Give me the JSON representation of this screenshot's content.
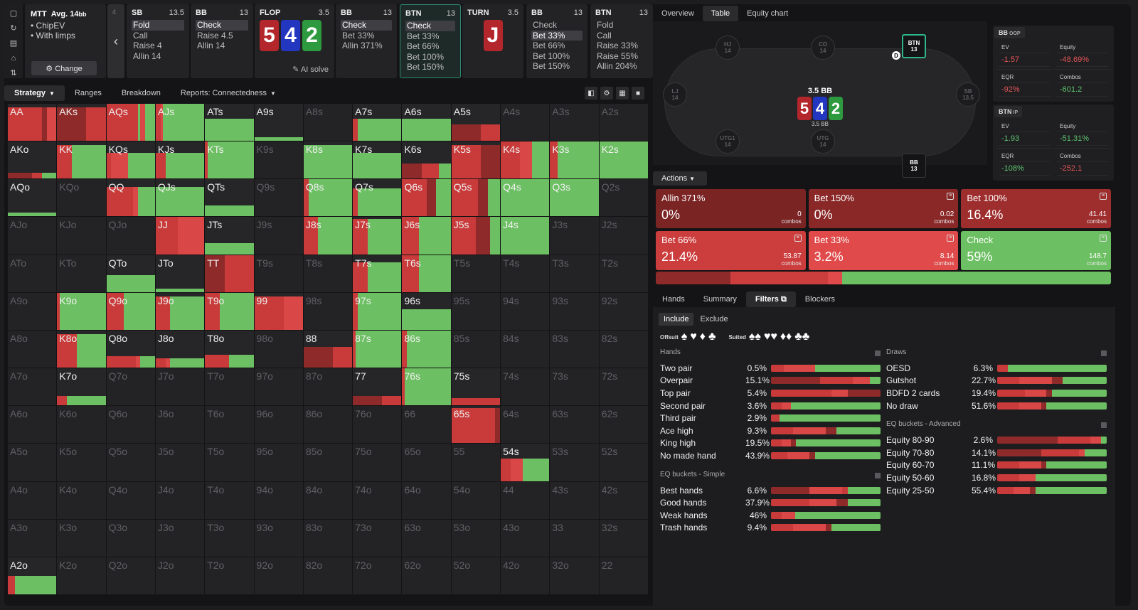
{
  "colors": {
    "green": "#6cbf62",
    "red": "#c93a3a",
    "dred": "#8f2a2a",
    "mred": "#d94747",
    "card_red": "#b3262b",
    "card_blue": "#2336c0",
    "card_green": "#2e9a3f"
  },
  "tools": [
    "▢",
    "↻",
    "▤",
    "⌂",
    "⇅"
  ],
  "mtt": {
    "title": "MTT",
    "avg": "Avg. 14",
    "avg_unit": "bb",
    "opt1": "ChipEV",
    "opt2": "With limps",
    "change": "Change"
  },
  "back": {
    "num": "4"
  },
  "decisions": [
    {
      "pos": "SB",
      "stack": "13.5",
      "actions": [
        "Fold",
        "Call",
        "Raise 4",
        "Allin 14"
      ],
      "sel": 0
    },
    {
      "pos": "BB",
      "stack": "13",
      "actions": [
        "Check",
        "Raise 4.5",
        "Allin 14"
      ],
      "sel": 0
    },
    {
      "pos": "FLOP",
      "stack": "3.5",
      "cards": [
        "5",
        "4",
        "2"
      ],
      "ai": "AI solve"
    },
    {
      "pos": "BB",
      "stack": "13",
      "actions": [
        "Check",
        "Bet 33%",
        "Allin 371%"
      ],
      "sel": 0
    },
    {
      "pos": "BTN",
      "stack": "13",
      "actions": [
        "Check",
        "Bet 33%",
        "Bet 66%",
        "Bet 100%",
        "Bet 150%"
      ],
      "sel": 0,
      "active": true
    },
    {
      "pos": "TURN",
      "stack": "3.5",
      "cards": [
        "J"
      ]
    },
    {
      "pos": "BB",
      "stack": "13",
      "actions": [
        "Check",
        "Bet 33%",
        "Bet 66%",
        "Bet 100%",
        "Bet 150%"
      ],
      "sel": 1
    },
    {
      "pos": "BTN",
      "stack": "13",
      "actions": [
        "Fold",
        "Call",
        "Raise 33%",
        "Raise 55%",
        "Allin 204%"
      ]
    }
  ],
  "toolbar": {
    "tabs": [
      "Strategy",
      "Ranges",
      "Breakdown",
      "Reports: Connectedness"
    ]
  },
  "grid": [
    [
      "AA",
      "AKs",
      "AQs",
      "AJs",
      "ATs",
      "A9s",
      "A8s",
      "A7s",
      "A6s",
      "A5s",
      "A4s",
      "A3s",
      "A2s"
    ],
    [
      "AKo",
      "KK",
      "KQs",
      "KJs",
      "KTs",
      "K9s",
      "K8s",
      "K7s",
      "K6s",
      "K5s",
      "K4s",
      "K3s",
      "K2s"
    ],
    [
      "AQo",
      "KQo",
      "QQ",
      "QJs",
      "QTs",
      "Q9s",
      "Q8s",
      "Q7s",
      "Q6s",
      "Q5s",
      "Q4s",
      "Q3s",
      "Q2s"
    ],
    [
      "AJo",
      "KJo",
      "QJo",
      "JJ",
      "JTs",
      "J9s",
      "J8s",
      "J7s",
      "J6s",
      "J5s",
      "J4s",
      "J3s",
      "J2s"
    ],
    [
      "ATo",
      "KTo",
      "QTo",
      "JTo",
      "TT",
      "T9s",
      "T8s",
      "T7s",
      "T6s",
      "T5s",
      "T4s",
      "T3s",
      "T2s"
    ],
    [
      "A9o",
      "K9o",
      "Q9o",
      "J9o",
      "T9o",
      "99",
      "98s",
      "97s",
      "96s",
      "95s",
      "94s",
      "93s",
      "92s"
    ],
    [
      "A8o",
      "K8o",
      "Q8o",
      "J8o",
      "T8o",
      "98o",
      "88",
      "87s",
      "86s",
      "85s",
      "84s",
      "83s",
      "82s"
    ],
    [
      "A7o",
      "K7o",
      "Q7o",
      "J7o",
      "T7o",
      "97o",
      "87o",
      "77",
      "76s",
      "75s",
      "74s",
      "73s",
      "72s"
    ],
    [
      "A6o",
      "K6o",
      "Q6o",
      "J6o",
      "T6o",
      "96o",
      "86o",
      "76o",
      "66",
      "65s",
      "64s",
      "63s",
      "62s"
    ],
    [
      "A5o",
      "K5o",
      "Q5o",
      "J5o",
      "T5o",
      "95o",
      "85o",
      "75o",
      "65o",
      "55",
      "54s",
      "53s",
      "52s"
    ],
    [
      "A4o",
      "K4o",
      "Q4o",
      "J4o",
      "T4o",
      "94o",
      "84o",
      "74o",
      "64o",
      "54o",
      "44",
      "43s",
      "42s"
    ],
    [
      "A3o",
      "K3o",
      "Q3o",
      "J3o",
      "T3o",
      "93o",
      "83o",
      "73o",
      "63o",
      "53o",
      "43o",
      "33",
      "32s"
    ],
    [
      "A2o",
      "K2o",
      "Q2o",
      "J2o",
      "T2o",
      "92o",
      "82o",
      "72o",
      "62o",
      "52o",
      "42o",
      "32o",
      "22"
    ]
  ],
  "right": {
    "tabs": [
      "Overview",
      "Table",
      "Equity chart"
    ],
    "seats": [
      {
        "n": "HJ",
        "s": "14"
      },
      {
        "n": "CO",
        "s": "14"
      },
      {
        "n": "BTN",
        "s": "13"
      },
      {
        "n": "LJ",
        "s": "14"
      },
      {
        "n": "SB",
        "s": "13.5"
      },
      {
        "n": "UTG1",
        "s": "14"
      },
      {
        "n": "UTG",
        "s": "14"
      },
      {
        "n": "BB",
        "s": "13"
      }
    ],
    "dealer": "D",
    "pot": {
      "label": "3.5 BB",
      "cards": [
        "5",
        "4",
        "2"
      ],
      "bb": "3.5 BB"
    },
    "bb_stats": {
      "title": "BB",
      "tag": "OOP",
      "ev_k": "EV",
      "ev": "-1.57",
      "eq_k": "Equity",
      "eq": "-48.69%",
      "eqr_k": "EQR",
      "eqr": "-92%",
      "co_k": "Combos",
      "co": "-601.2"
    },
    "btn_stats": {
      "title": "BTN",
      "tag": "IP",
      "ev_k": "EV",
      "ev": "-1.93",
      "eq_k": "Equity",
      "eq": "-51.31%",
      "eqr_k": "EQR",
      "eqr": "-108%",
      "co_k": "Combos",
      "co": "-252.1"
    },
    "actions_btn": "Actions",
    "actions": [
      {
        "name": "Allin 371%",
        "pct": "0%",
        "combos": "0",
        "bg": "#7a2424"
      },
      {
        "name": "Bet 150%",
        "pct": "0%",
        "combos": "0.02",
        "bg": "#8a2828"
      },
      {
        "name": "Bet 100%",
        "pct": "16.4%",
        "combos": "41.41",
        "bg": "#9e2d2d"
      },
      {
        "name": "Bet 66%",
        "pct": "21.4%",
        "combos": "53.87",
        "bg": "#cc3d3d"
      },
      {
        "name": "Bet 33%",
        "pct": "3.2%",
        "combos": "8.14",
        "bg": "#e04a4a"
      },
      {
        "name": "Check",
        "pct": "59%",
        "combos": "148.7",
        "bg": "#6cbf62"
      }
    ],
    "combos_label": "combos",
    "bottom_tabs": [
      "Hands",
      "Summary",
      "Filters",
      "Blockers"
    ],
    "include": "Include",
    "exclude": "Exclude",
    "offsuit": "Offsuit",
    "suited": "Suited",
    "hands_sec": "Hands",
    "hands": [
      [
        "Two pair",
        "0.5%"
      ],
      [
        "Overpair",
        "15.1%"
      ],
      [
        "Top pair",
        "5.4%"
      ],
      [
        "Second pair",
        "3.6%"
      ],
      [
        "Third pair",
        "2.9%"
      ],
      [
        "Ace high",
        "9.3%"
      ],
      [
        "King high",
        "19.5%"
      ],
      [
        "No made hand",
        "43.9%"
      ]
    ],
    "eqs_sec": "EQ buckets - Simple",
    "eqs": [
      [
        "Best hands",
        "6.6%"
      ],
      [
        "Good hands",
        "37.9%"
      ],
      [
        "Weak hands",
        "46%"
      ],
      [
        "Trash hands",
        "9.4%"
      ]
    ],
    "draws_sec": "Draws",
    "draws": [
      [
        "OESD",
        "6.3%"
      ],
      [
        "Gutshot",
        "22.7%"
      ],
      [
        "BDFD 2 cards",
        "19.4%"
      ],
      [
        "No draw",
        "51.6%"
      ]
    ],
    "eqa_sec": "EQ buckets - Advanced",
    "eqa": [
      [
        "Equity 80-90",
        "2.6%"
      ],
      [
        "Equity 70-80",
        "14.1%"
      ],
      [
        "Equity 60-70",
        "11.1%"
      ],
      [
        "Equity 50-60",
        "16.8%"
      ],
      [
        "Equity 25-50",
        "55.4%"
      ]
    ]
  }
}
